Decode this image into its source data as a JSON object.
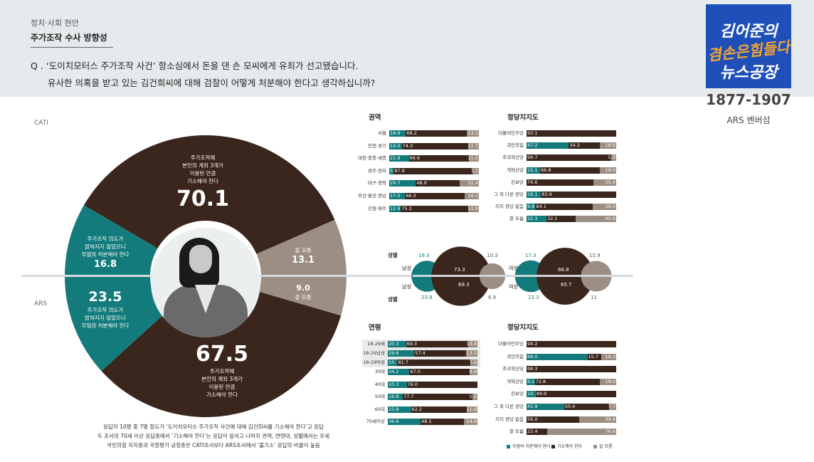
{
  "header": {
    "category": "정치·사회 현안",
    "subtitle": "주가조작 수사 방향성",
    "question_line1": "Q . ‘도이치모터스 주가조작 사건’ 항소심에서 돈을 댄 손 모씨에게 유죄가 선고됐습니다.",
    "question_line2": "유사한 의혹을 받고 있는 김건희씨에 대해 검찰이 어떻게 처분해야 한다고 생각하십니까?"
  },
  "logo": {
    "line1": "김어준의",
    "line2": "겸손은힘들다",
    "line3": "뉴스공장",
    "range": "1877-1907",
    "label": "ARS 벤버섬"
  },
  "colors": {
    "teal": "#137b7c",
    "brown": "#3a261c",
    "gray": "#9c8e82",
    "header_bg": "#e7eaec",
    "logo_bg": "#1f4fb8"
  },
  "methods": {
    "cati": "CATI",
    "ars": "ARS"
  },
  "donut": {
    "cati": {
      "indict_label": [
        "주가조작에",
        "본인의 계좌 3개가",
        "이용된 만큼",
        "기소해야 한다"
      ],
      "indict_value": "70.1",
      "no_label": [
        "주가조작 의도가",
        "밝혀지지 않았으니",
        "무혐의 처분해야 한다"
      ],
      "no_value": "16.8",
      "dk_label": "잘 모름",
      "dk_value": "13.1"
    },
    "ars": {
      "indict_label": [
        "주가조작에",
        "본인의 계좌 3개가",
        "이용된 만큼",
        "기소해야 한다"
      ],
      "indict_value": "67.5",
      "no_label": [
        "주가조작 의도가",
        "밝혀지지 않았으니",
        "무혐의 처분해야 한다"
      ],
      "no_value": "23.5",
      "dk_label": "잘 모름",
      "dk_value": "9.0"
    }
  },
  "note": {
    "line1": "응답자 10명 중 7명 정도가 ‘도이치모터스 주가조작 사건에 대해 김건희씨를 기소해야 한다’고 응답",
    "line2": "두 조사의 70세 이상 응답층에서 ‘기소해야 한다’는 응답이 앞서고 나머지 권역, 연령대, 성별에서는 우세",
    "line3": "국민의힘 지지층과 국정평가 긍정층은 CATI조사보다 ARS조사에서 ‘불기소’ 응답의 비율이 높음"
  },
  "gender": {
    "title_top": "성별",
    "title_bottom": "성별",
    "male": {
      "label": "남성",
      "cati": [
        16.3,
        73.3,
        10.3
      ],
      "ars": [
        23.8,
        69.3,
        6.9
      ]
    },
    "female": {
      "label": "여성",
      "cati": [
        17.3,
        66.8,
        15.9
      ],
      "ars": [
        23.3,
        65.7,
        11.0
      ]
    }
  },
  "legend": [
    "무혐의 처분해야 한다",
    "기소해야 한다",
    "잘 모름"
  ],
  "chart_data": [
    {
      "type": "pie",
      "title": "CATI",
      "categories": [
        "주가조작에 본인의 계좌 3개가 이용된 만큼 기소해야 한다",
        "잘 모름",
        "주가조작 의도가 밝혀지지 않았으니 무혐의 처분해야 한다"
      ],
      "values": [
        70.1,
        13.1,
        16.8
      ]
    },
    {
      "type": "pie",
      "title": "ARS",
      "categories": [
        "주가조작에 본인의 계좌 3개가 이용된 만큼 기소해야 한다",
        "잘 모름",
        "주가조작 의도가 밝혀지지 않았으니 무혐의 처분해야 한다"
      ],
      "values": [
        67.5,
        9.0,
        23.5
      ]
    },
    {
      "type": "bar",
      "title": "권역",
      "categories": [
        "서울",
        "인천·경기",
        "대전·충청·세종",
        "광주·전라",
        "대구·경북",
        "부산·울산·경남",
        "강원·제주"
      ],
      "series": [
        {
          "name": "무혐의 처분해야 한다",
          "values": [
            18.6,
            14.0,
            21.9,
            5.0,
            29.7,
            17.5,
            12.9
          ]
        },
        {
          "name": "기소해야 한다",
          "values": [
            68.2,
            74.3,
            66.6,
            87.9,
            48.9,
            66.3,
            75.2
          ]
        },
        {
          "name": "잘 모름",
          "values": [
            13.2,
            11.7,
            11.5,
            7.1,
            21.4,
            16.1,
            11.9
          ]
        }
      ]
    },
    {
      "type": "bar",
      "title": "정당지지도",
      "categories": [
        "더불어민주당",
        "국민의힘",
        "조국혁신당",
        "개혁신당",
        "진보당",
        "그 외 다른 정당",
        "지지 정당 없음",
        "잘 모름"
      ],
      "series": [
        {
          "name": "무혐의 처분해야 한다",
          "values": [
            null,
            47.2,
            null,
            15.1,
            null,
            16.1,
            9.8,
            22.3
          ]
        },
        {
          "name": "기소해야 한다",
          "values": [
            93.1,
            34.3,
            94.7,
            66.8,
            74.6,
            83.9,
            64.1,
            32.1
          ]
        },
        {
          "name": "잘 모름",
          "values": [
            null,
            18.6,
            5.3,
            18.0,
            25.4,
            null,
            26.0,
            45.6
          ]
        }
      ]
    },
    {
      "type": "bar",
      "title": "연령",
      "categories": [
        "18-29세",
        "18-29남성",
        "18-29여성",
        "30대",
        "40대",
        "50대",
        "60대",
        "70세이상"
      ],
      "series": [
        {
          "name": "무혐의 처분해야 한다",
          "values": [
            20.3,
            29.6,
            10.7,
            24.2,
            20.3,
            16.8,
            25.8,
            36.6
          ]
        },
        {
          "name": "기소해야 한다",
          "values": [
            69.3,
            57.4,
            81.7,
            67.0,
            76.0,
            77.7,
            62.2,
            48.5
          ]
        },
        {
          "name": "잘 모름",
          "values": [
            10.4,
            13.1,
            7.6,
            8.9,
            null,
            5.5,
            11.9,
            14.9
          ]
        }
      ]
    },
    {
      "type": "bar",
      "title": "정당지지도",
      "categories": [
        "더불어민주당",
        "국민의힘",
        "조국혁신당",
        "개혁신당",
        "진보당",
        "그 외 다른 정당",
        "지지 정당 없음",
        "잘 모름"
      ],
      "series": [
        {
          "name": "무혐의 처분해야 한다",
          "values": [
            null,
            68.0,
            null,
            9.2,
            10.1,
            41.9,
            null,
            null
          ]
        },
        {
          "name": "기소해야 한다",
          "values": [
            94.2,
            15.7,
            98.3,
            72.8,
            89.9,
            50.4,
            56.0,
            23.4
          ]
        },
        {
          "name": "잘 모름",
          "values": [
            null,
            16.3,
            null,
            18.0,
            null,
            7.7,
            39.4,
            76.6
          ]
        }
      ]
    },
    {
      "type": "pie",
      "title": "성별",
      "categories": [
        "남성 CATI",
        "남성 ARS",
        "여성 CATI",
        "여성 ARS"
      ],
      "series": [
        {
          "name": "무혐의 처분해야 한다",
          "values": [
            16.3,
            23.8,
            17.3,
            23.3
          ]
        },
        {
          "name": "기소해야 한다",
          "values": [
            73.3,
            69.3,
            66.8,
            65.7
          ]
        },
        {
          "name": "잘 모름",
          "values": [
            10.3,
            6.9,
            15.9,
            11.0
          ]
        }
      ]
    }
  ]
}
